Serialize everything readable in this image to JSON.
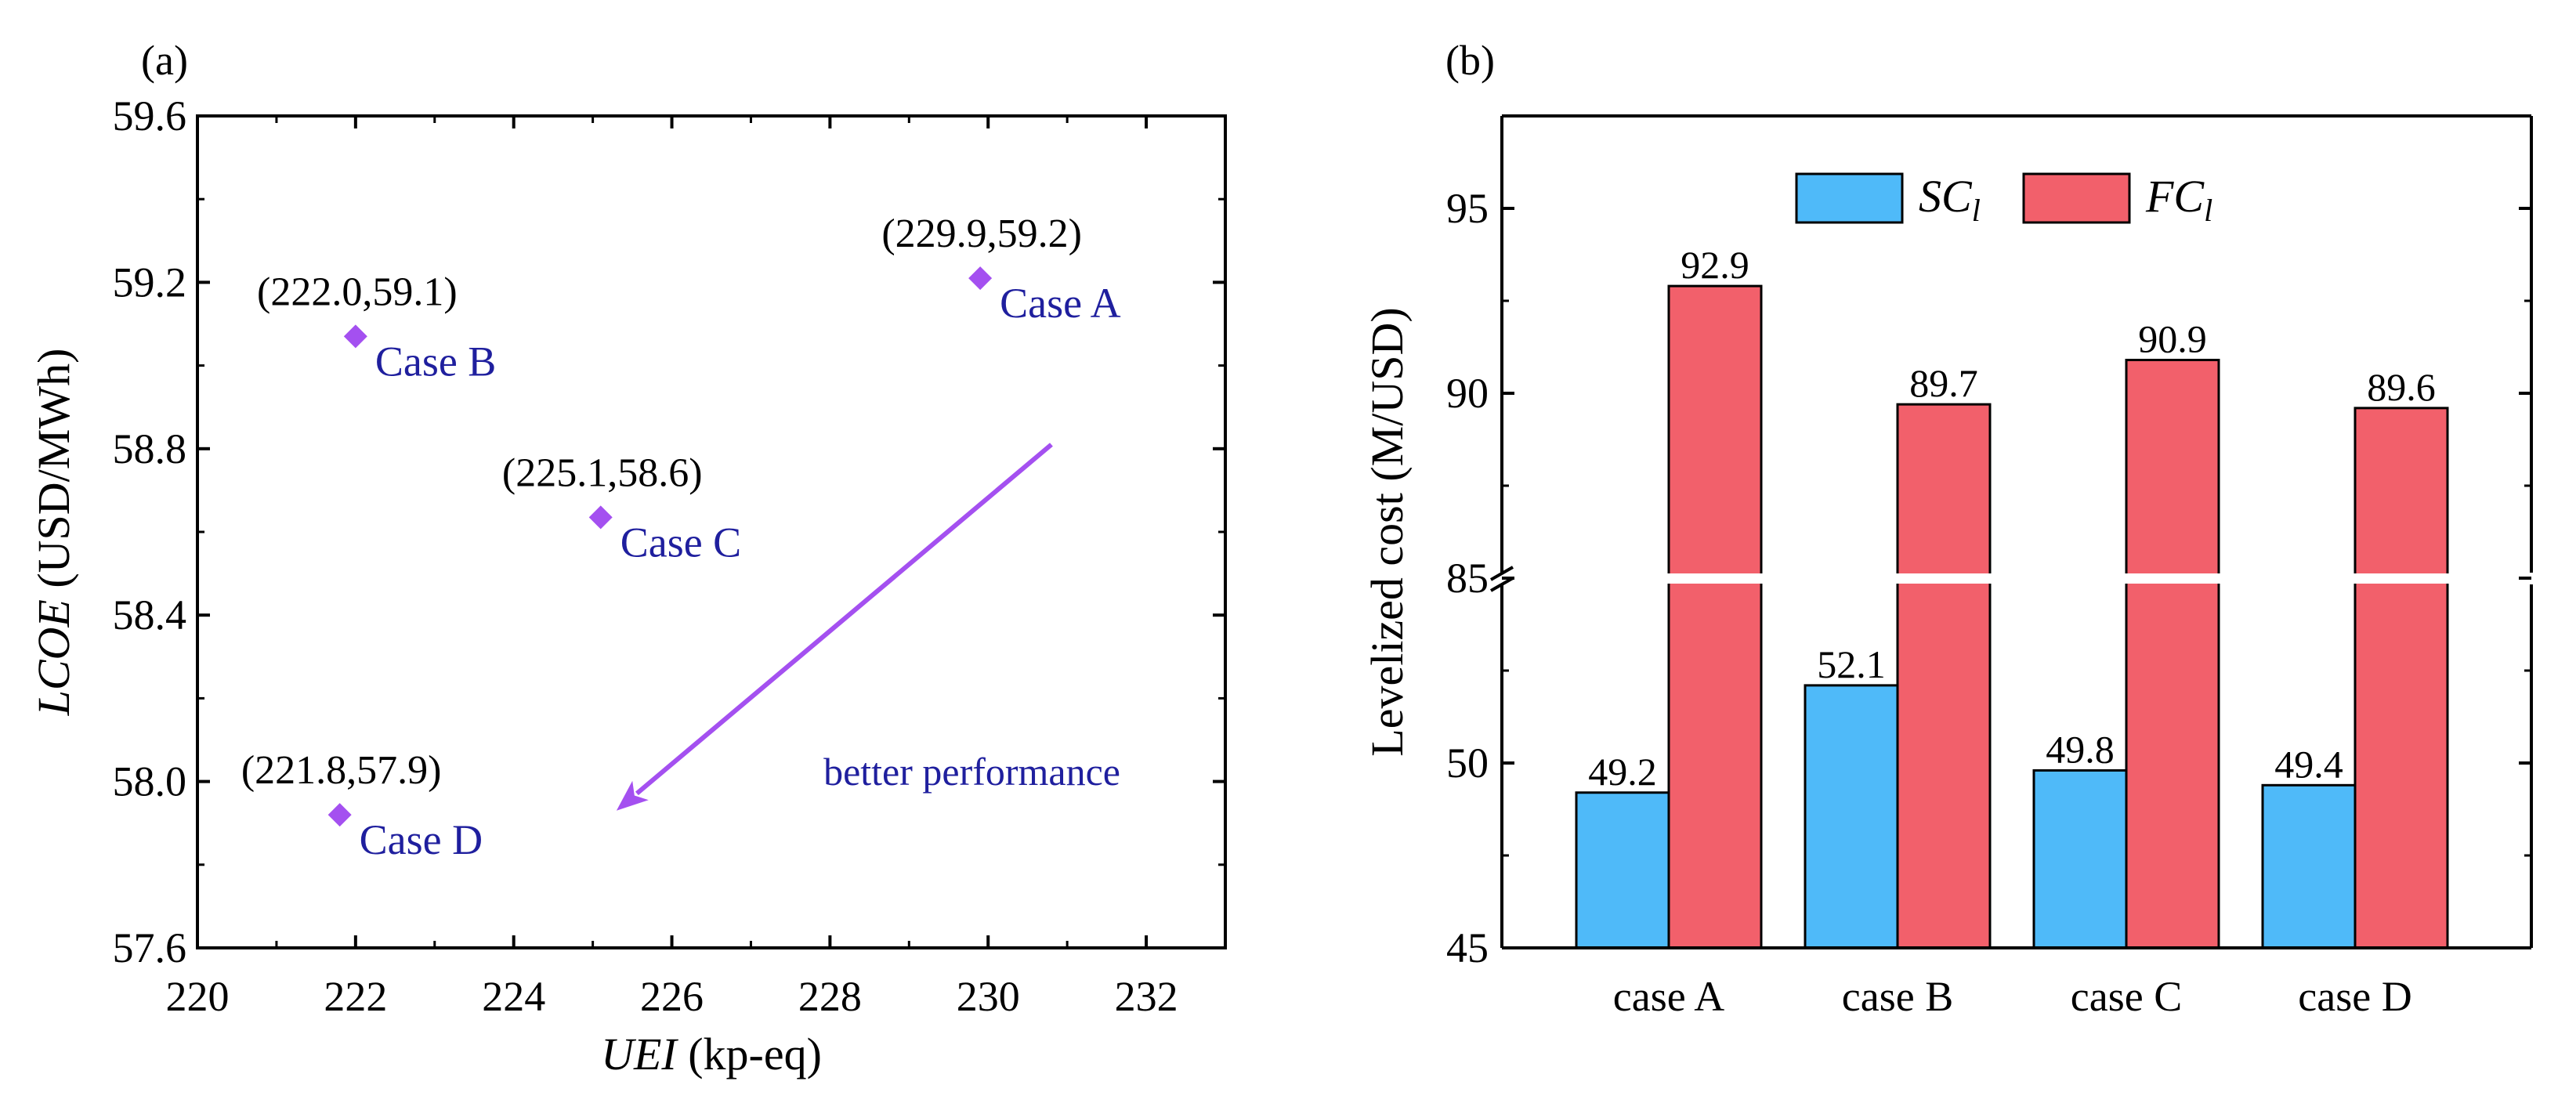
{
  "colors": {
    "point": "#a450f0",
    "arrow": "#a450f0",
    "label_blue": "#1f1f9e",
    "sc_bar": "#4fbaf9",
    "fc_bar": "#f2606b",
    "axis": "#000000"
  },
  "chart_data": [
    {
      "type": "scatter",
      "panel_label": "(a)",
      "xlabel_italic": "UEI",
      "xlabel_rest": " (kp-eq)",
      "ylabel_italic": "LCOE",
      "ylabel_rest": " (USD/MWh)",
      "xlim": [
        220,
        233
      ],
      "ylim": [
        57.6,
        59.6
      ],
      "xticks": [
        220,
        222,
        224,
        226,
        228,
        230,
        232
      ],
      "xtick_labels": [
        "220",
        "222",
        "224",
        "226",
        "228",
        "230",
        "232"
      ],
      "yticks": [
        57.6,
        58.0,
        58.4,
        58.8,
        59.2,
        59.6
      ],
      "ytick_labels": [
        "57.6",
        "58.0",
        "58.4",
        "58.8",
        "59.2",
        "59.6"
      ],
      "points": [
        {
          "name": "Case A",
          "x": 229.9,
          "y": 59.21,
          "coord_label": "(229.9,59.2)"
        },
        {
          "name": "Case B",
          "x": 222.0,
          "y": 59.07,
          "coord_label": "(222.0,59.1)"
        },
        {
          "name": "Case C",
          "x": 225.1,
          "y": 58.635,
          "coord_label": "(225.1,58.6)"
        },
        {
          "name": "Case D",
          "x": 221.8,
          "y": 57.92,
          "coord_label": "(221.8,57.9)"
        }
      ],
      "arrow": {
        "from": [
          230.8,
          58.81
        ],
        "to": [
          225.3,
          57.93
        ]
      },
      "annotation": "better performance"
    },
    {
      "type": "bar",
      "panel_label": "(b)",
      "ylabel": "Levelized cost (M/USD)",
      "categories": [
        "case A",
        "case B",
        "case C",
        "case D"
      ],
      "series": [
        {
          "name_main": "SC",
          "name_sub": "l",
          "values": [
            49.2,
            52.1,
            49.8,
            49.4
          ],
          "labels": [
            "49.2",
            "52.1",
            "49.8",
            "49.4"
          ]
        },
        {
          "name_main": "FC",
          "name_sub": "l",
          "values": [
            92.9,
            89.7,
            90.9,
            89.6
          ],
          "labels": [
            "92.9",
            "89.7",
            "90.9",
            "89.6"
          ]
        }
      ],
      "axis_break": {
        "lower_range": [
          45,
          55
        ],
        "upper_range": [
          85,
          97.5
        ]
      },
      "yticks": [
        45,
        50,
        85,
        90,
        95
      ],
      "ytick_labels": [
        "45",
        "50",
        "85",
        "90",
        "95"
      ],
      "legend_position": "top-center"
    }
  ]
}
